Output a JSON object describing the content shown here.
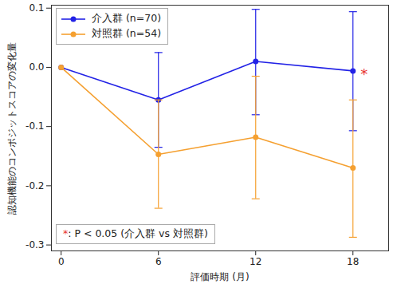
{
  "chart_data": {
    "type": "line",
    "xlabel": "評価時期 (月)",
    "ylabel": "認知機能のコンポジットスコアの変化量",
    "x": [
      0,
      6,
      12,
      18
    ],
    "series": [
      {
        "name": "介入群 (n=70)",
        "color": "#2222e6",
        "marker": "circle",
        "values": [
          0,
          -0.055,
          0.01,
          -0.006
        ],
        "error_lower": [
          null,
          -0.135,
          -0.08,
          -0.107
        ],
        "error_upper": [
          null,
          0.025,
          0.098,
          0.094
        ]
      },
      {
        "name": "対照群 (n=54)",
        "color": "#f5a030",
        "marker": "circle",
        "values": [
          0,
          -0.147,
          -0.118,
          -0.17
        ],
        "error_lower": [
          null,
          -0.238,
          -0.222,
          -0.287
        ],
        "error_upper": [
          null,
          -0.055,
          -0.015,
          -0.055
        ]
      }
    ],
    "xlim": [
      -0.6,
      20.2
    ],
    "xticks": [
      0,
      6,
      12,
      18
    ],
    "ylim": [
      -0.31,
      0.105
    ],
    "yticks": [
      -0.3,
      -0.2,
      -0.1,
      {
        "value": 0,
        "label": "0.0"
      },
      0.1
    ],
    "grid": false,
    "legend": "upper left",
    "significance": {
      "series": "介入群 (n=70)",
      "x": 18,
      "label": "*",
      "color": "#e8302a"
    },
    "footnote": {
      "symbol": "*",
      "text": ": P < 0.05 (介入群 vs 対照群)",
      "color": "#e8302a"
    }
  }
}
